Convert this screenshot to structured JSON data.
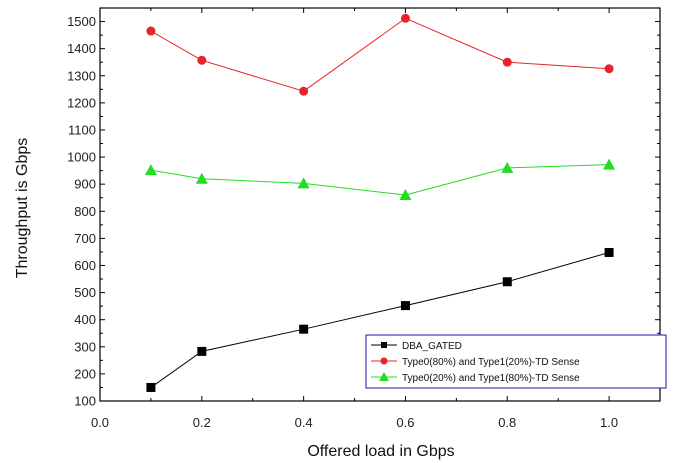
{
  "chart_data": {
    "type": "line",
    "xlabel": "Offered load in Gbps",
    "ylabel": "Throughput is Gbps",
    "xlim": [
      0.0,
      1.1
    ],
    "ylim": [
      100,
      1550
    ],
    "x_ticks": [
      "0.0",
      "0.2",
      "0.4",
      "0.6",
      "0.8",
      "1.0"
    ],
    "y_ticks": [
      "100",
      "200",
      "300",
      "400",
      "500",
      "600",
      "700",
      "800",
      "900",
      "1000",
      "1100",
      "1200",
      "1300",
      "1400",
      "1500"
    ],
    "grid": false,
    "legend_position": "bottom-right",
    "series": [
      {
        "name": "DBA_GATED",
        "color": "#000000",
        "marker": "square",
        "x": [
          0.1,
          0.2,
          0.4,
          0.6,
          0.8,
          1.0
        ],
        "y": [
          150,
          283,
          365,
          452,
          540,
          648
        ]
      },
      {
        "name": "Type0(80%) and Type1(20%)-TD Sense",
        "color": "#e8242a",
        "marker": "circle",
        "x": [
          0.1,
          0.2,
          0.4,
          0.6,
          0.8,
          1.0
        ],
        "y": [
          1465,
          1357,
          1243,
          1512,
          1350,
          1326
        ]
      },
      {
        "name": "Type0(20%) and Type1(80%)-TD Sense",
        "color": "#22dd22",
        "marker": "triangle",
        "x": [
          0.1,
          0.2,
          0.4,
          0.6,
          0.8,
          1.0
        ],
        "y": [
          952,
          920,
          903,
          860,
          960,
          972
        ]
      }
    ]
  }
}
